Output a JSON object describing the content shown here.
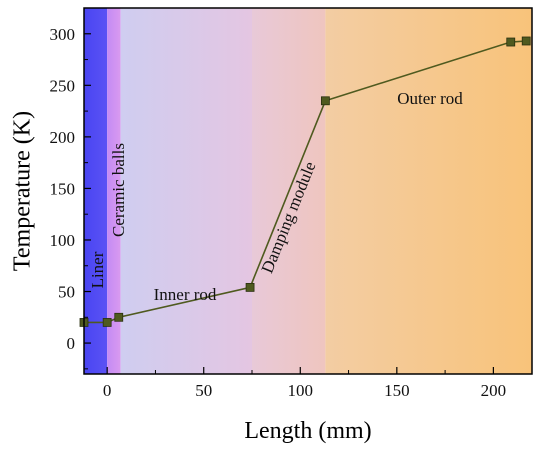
{
  "chart_data": {
    "type": "line",
    "xlabel": "Length (mm)",
    "ylabel": "Temperature (K)",
    "xlim": [
      -12,
      220
    ],
    "ylim": [
      -30,
      325
    ],
    "x_ticks": [
      0,
      50,
      100,
      150,
      200
    ],
    "y_ticks": [
      0,
      50,
      100,
      150,
      200,
      250,
      300
    ],
    "x_tick_labels": [
      "0",
      "50",
      "100",
      "150",
      "200"
    ],
    "y_tick_labels": [
      "0",
      "50",
      "100",
      "150",
      "200",
      "250",
      "300"
    ],
    "grid": false,
    "series": [
      {
        "x": [
          -13,
          0,
          6,
          74,
          113,
          209,
          217
        ],
        "y": [
          20,
          20,
          25,
          54,
          235,
          292,
          293
        ],
        "color": "#4f5a1f"
      }
    ],
    "regions": [
      {
        "label": "Liner",
        "x_start": -12,
        "x_end": 0,
        "color_start": "#4a45f2",
        "color_end": "#5a52f4"
      },
      {
        "label": "Ceramic balls",
        "x_start": 0,
        "x_end": 7,
        "color_start": "#c48bf4",
        "color_end": "#d99af0"
      },
      {
        "label": "Inner rod",
        "x_start": 7,
        "x_end": 75,
        "color_start": "#cfcdf0",
        "color_end": "#e4c6e2"
      },
      {
        "label": "Damping module",
        "x_start": 75,
        "x_end": 113,
        "color_start": "#e8c9d8",
        "color_end": "#efc5bf"
      },
      {
        "label": "Outer rod",
        "x_start": 113,
        "x_end": 220,
        "color_start": "#f3cda3",
        "color_end": "#f8c37a"
      }
    ]
  }
}
